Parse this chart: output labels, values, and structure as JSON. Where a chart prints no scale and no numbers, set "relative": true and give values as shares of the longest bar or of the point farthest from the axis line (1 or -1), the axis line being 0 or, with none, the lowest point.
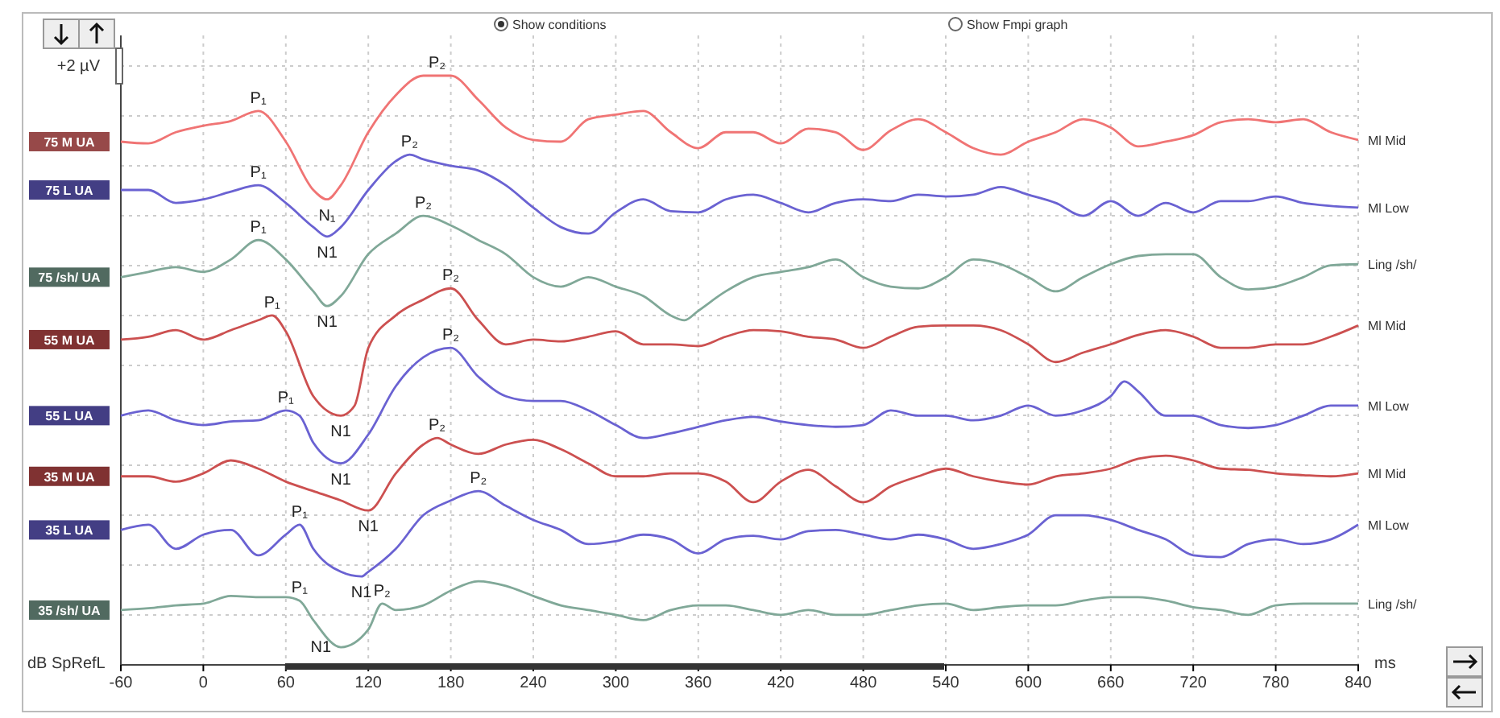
{
  "chart_data": {
    "type": "line",
    "relative": true,
    "xlabel": "ms",
    "ylabel": "dB SpRefL",
    "xlim": [
      -60,
      840
    ],
    "xticks": [
      -60,
      0,
      60,
      120,
      180,
      240,
      300,
      360,
      420,
      480,
      540,
      600,
      660,
      720,
      780,
      840
    ],
    "grid": true,
    "series": [
      {
        "name": "75 M UA",
        "color": "#f07474",
        "x": [
          -60,
          -40,
          -20,
          0,
          20,
          40,
          60,
          80,
          90,
          100,
          120,
          140,
          160,
          180,
          200,
          220,
          240,
          260,
          280,
          300,
          320,
          340,
          360,
          380,
          400,
          420,
          440,
          460,
          480,
          500,
          520,
          540,
          560,
          580,
          600,
          620,
          640,
          660,
          680,
          700,
          720,
          740,
          760,
          780,
          800,
          820,
          840
        ],
        "values": [
          0.888,
          0.885,
          0.904,
          0.915,
          0.923,
          0.94,
          0.888,
          0.806,
          0.79,
          0.814,
          0.904,
          0.967,
          1,
          1,
          0.959,
          0.912,
          0.891,
          0.888,
          0.926,
          0.934,
          0.94,
          0.904,
          0.877,
          0.904,
          0.904,
          0.885,
          0.91,
          0.904,
          0.874,
          0.907,
          0.926,
          0.904,
          0.877,
          0.866,
          0.888,
          0.904,
          0.926,
          0.912,
          0.88,
          0.888,
          0.899,
          0.921,
          0.926,
          0.921,
          0.926,
          0.904,
          0.891
        ]
      },
      {
        "name": "75 L UA",
        "color": "#6a62d2",
        "x": [
          -60,
          -40,
          -20,
          0,
          20,
          40,
          60,
          80,
          90,
          100,
          120,
          140,
          150,
          160,
          180,
          200,
          220,
          240,
          260,
          280,
          300,
          320,
          340,
          360,
          380,
          400,
          420,
          440,
          460,
          480,
          500,
          520,
          540,
          560,
          580,
          600,
          620,
          640,
          660,
          680,
          700,
          720,
          740,
          760,
          780,
          800,
          820,
          840
        ],
        "values": [
          0.806,
          0.806,
          0.784,
          0.79,
          0.803,
          0.814,
          0.784,
          0.743,
          0.727,
          0.743,
          0.806,
          0.855,
          0.866,
          0.858,
          0.847,
          0.839,
          0.814,
          0.776,
          0.743,
          0.732,
          0.768,
          0.79,
          0.77,
          0.768,
          0.79,
          0.798,
          0.784,
          0.768,
          0.784,
          0.79,
          0.787,
          0.798,
          0.795,
          0.798,
          0.811,
          0.798,
          0.784,
          0.762,
          0.787,
          0.762,
          0.784,
          0.768,
          0.787,
          0.787,
          0.795,
          0.784,
          0.779,
          0.776
        ]
      },
      {
        "name": "75 /sh/ UA",
        "color": "#80a898",
        "x": [
          -60,
          -40,
          -20,
          0,
          20,
          40,
          60,
          80,
          90,
          100,
          120,
          140,
          160,
          180,
          200,
          220,
          240,
          260,
          280,
          300,
          320,
          340,
          350,
          360,
          380,
          400,
          420,
          440,
          460,
          480,
          500,
          520,
          540,
          560,
          580,
          600,
          620,
          640,
          660,
          680,
          700,
          720,
          740,
          760,
          780,
          800,
          820,
          840
        ],
        "values": [
          0.658,
          0.667,
          0.675,
          0.667,
          0.688,
          0.721,
          0.688,
          0.634,
          0.609,
          0.626,
          0.697,
          0.732,
          0.762,
          0.746,
          0.721,
          0.697,
          0.658,
          0.642,
          0.658,
          0.642,
          0.626,
          0.593,
          0.585,
          0.601,
          0.634,
          0.658,
          0.667,
          0.675,
          0.688,
          0.658,
          0.642,
          0.639,
          0.658,
          0.688,
          0.68,
          0.658,
          0.634,
          0.658,
          0.68,
          0.694,
          0.697,
          0.697,
          0.658,
          0.637,
          0.642,
          0.658,
          0.678,
          0.68
        ]
      },
      {
        "name": "55 M UA",
        "color": "#cc5050",
        "x": [
          -60,
          -40,
          -20,
          0,
          20,
          40,
          50,
          60,
          80,
          100,
          110,
          120,
          140,
          160,
          180,
          200,
          220,
          240,
          260,
          280,
          300,
          320,
          340,
          360,
          380,
          400,
          420,
          440,
          460,
          480,
          500,
          520,
          540,
          560,
          580,
          600,
          620,
          640,
          660,
          680,
          700,
          720,
          740,
          760,
          780,
          800,
          820,
          840
        ],
        "values": [
          0.552,
          0.557,
          0.568,
          0.552,
          0.568,
          0.585,
          0.593,
          0.566,
          0.456,
          0.423,
          0.44,
          0.538,
          0.593,
          0.62,
          0.639,
          0.585,
          0.544,
          0.552,
          0.549,
          0.557,
          0.566,
          0.544,
          0.544,
          0.541,
          0.557,
          0.568,
          0.566,
          0.557,
          0.552,
          0.538,
          0.557,
          0.574,
          0.576,
          0.576,
          0.568,
          0.544,
          0.514,
          0.53,
          0.544,
          0.56,
          0.568,
          0.557,
          0.538,
          0.538,
          0.544,
          0.544,
          0.557,
          0.576
        ]
      },
      {
        "name": "55 L UA",
        "color": "#6a62d2",
        "x": [
          -60,
          -40,
          -20,
          0,
          20,
          40,
          60,
          70,
          80,
          100,
          120,
          140,
          160,
          180,
          200,
          220,
          240,
          260,
          280,
          300,
          320,
          340,
          360,
          380,
          400,
          420,
          440,
          460,
          480,
          500,
          520,
          540,
          560,
          580,
          600,
          620,
          640,
          660,
          670,
          680,
          700,
          720,
          740,
          760,
          780,
          800,
          820,
          840
        ],
        "values": [
          0.423,
          0.432,
          0.415,
          0.407,
          0.413,
          0.415,
          0.432,
          0.423,
          0.377,
          0.342,
          0.391,
          0.473,
          0.522,
          0.538,
          0.489,
          0.456,
          0.448,
          0.448,
          0.432,
          0.407,
          0.385,
          0.393,
          0.404,
          0.415,
          0.421,
          0.413,
          0.407,
          0.404,
          0.407,
          0.432,
          0.423,
          0.423,
          0.415,
          0.423,
          0.44,
          0.423,
          0.432,
          0.456,
          0.481,
          0.464,
          0.423,
          0.423,
          0.407,
          0.402,
          0.407,
          0.423,
          0.44,
          0.44
        ]
      },
      {
        "name": "35 M UA",
        "color": "#cc5050",
        "x": [
          -60,
          -40,
          -20,
          0,
          20,
          40,
          60,
          80,
          100,
          120,
          140,
          160,
          170,
          180,
          200,
          220,
          240,
          260,
          280,
          300,
          320,
          340,
          360,
          380,
          400,
          420,
          440,
          460,
          480,
          500,
          520,
          540,
          560,
          580,
          600,
          620,
          640,
          660,
          680,
          700,
          720,
          740,
          760,
          780,
          800,
          820,
          840
        ],
        "values": [
          0.32,
          0.32,
          0.311,
          0.325,
          0.347,
          0.333,
          0.311,
          0.295,
          0.279,
          0.262,
          0.325,
          0.374,
          0.385,
          0.374,
          0.358,
          0.374,
          0.382,
          0.366,
          0.342,
          0.32,
          0.32,
          0.325,
          0.325,
          0.311,
          0.276,
          0.311,
          0.331,
          0.303,
          0.276,
          0.303,
          0.32,
          0.333,
          0.32,
          0.311,
          0.306,
          0.32,
          0.325,
          0.333,
          0.35,
          0.355,
          0.347,
          0.333,
          0.331,
          0.325,
          0.322,
          0.32,
          0.325
        ]
      },
      {
        "name": "35 L UA",
        "color": "#6a62d2",
        "x": [
          -60,
          -40,
          -20,
          0,
          20,
          40,
          60,
          70,
          80,
          100,
          115,
          120,
          140,
          160,
          180,
          200,
          220,
          240,
          260,
          280,
          300,
          320,
          340,
          360,
          380,
          400,
          420,
          440,
          460,
          480,
          500,
          520,
          540,
          560,
          580,
          600,
          620,
          640,
          660,
          680,
          700,
          720,
          740,
          760,
          780,
          800,
          820,
          840
        ],
        "values": [
          0.229,
          0.238,
          0.197,
          0.221,
          0.229,
          0.186,
          0.221,
          0.238,
          0.197,
          0.158,
          0.15,
          0.158,
          0.197,
          0.254,
          0.279,
          0.295,
          0.27,
          0.246,
          0.229,
          0.205,
          0.21,
          0.221,
          0.213,
          0.189,
          0.213,
          0.219,
          0.213,
          0.227,
          0.229,
          0.221,
          0.213,
          0.221,
          0.213,
          0.197,
          0.205,
          0.221,
          0.254,
          0.254,
          0.246,
          0.229,
          0.213,
          0.186,
          0.183,
          0.205,
          0.213,
          0.205,
          0.213,
          0.238
        ]
      },
      {
        "name": "35 /sh/ UA",
        "color": "#80a898",
        "x": [
          -60,
          -40,
          -20,
          0,
          20,
          40,
          60,
          70,
          80,
          100,
          120,
          130,
          140,
          160,
          180,
          200,
          220,
          240,
          260,
          280,
          300,
          320,
          340,
          360,
          380,
          400,
          420,
          440,
          460,
          480,
          500,
          520,
          540,
          560,
          580,
          600,
          620,
          640,
          660,
          680,
          700,
          720,
          740,
          760,
          780,
          800,
          820,
          840
        ],
        "values": [
          0.093,
          0.096,
          0.101,
          0.104,
          0.117,
          0.115,
          0.115,
          0.109,
          0.076,
          0.03,
          0.06,
          0.104,
          0.093,
          0.101,
          0.126,
          0.142,
          0.134,
          0.117,
          0.101,
          0.093,
          0.085,
          0.076,
          0.093,
          0.101,
          0.101,
          0.093,
          0.085,
          0.093,
          0.085,
          0.085,
          0.093,
          0.101,
          0.104,
          0.093,
          0.098,
          0.101,
          0.101,
          0.109,
          0.115,
          0.115,
          0.109,
          0.098,
          0.093,
          0.085,
          0.101,
          0.104,
          0.104,
          0.104
        ]
      }
    ],
    "annotations": [
      "+2 µV",
      "Show conditions",
      "Show Fmpi graph",
      {
        "text": "Ml Mid",
        "x": 840,
        "y": 0.891
      },
      {
        "text": "Ml Low",
        "x": 840,
        "y": 0.776
      },
      {
        "text": "Ling /sh/",
        "x": 840,
        "y": 0.68
      },
      {
        "text": "Ml Mid",
        "x": 840,
        "y": 0.576
      },
      {
        "text": "Ml Low",
        "x": 840,
        "y": 0.44
      },
      {
        "text": "Ml Mid",
        "x": 840,
        "y": 0.325
      },
      {
        "text": "Ml Low",
        "x": 840,
        "y": 0.238
      },
      {
        "text": "Ling /sh/",
        "x": 840,
        "y": 0.104
      },
      {
        "text": "P₁",
        "x": 40,
        "y": 0.94
      },
      {
        "text": "N₁",
        "x": 90,
        "y": 0.79
      },
      {
        "text": "P₂",
        "x": 170,
        "y": 1
      },
      {
        "text": "P₁",
        "x": 40,
        "y": 0.814
      },
      {
        "text": "N1",
        "x": 90,
        "y": 0.727
      },
      {
        "text": "P₂",
        "x": 150,
        "y": 0.866
      },
      {
        "text": "P₁",
        "x": 40,
        "y": 0.721
      },
      {
        "text": "N1",
        "x": 90,
        "y": 0.609
      },
      {
        "text": "P₂",
        "x": 160,
        "y": 0.762
      },
      {
        "text": "P₁",
        "x": 50,
        "y": 0.593
      },
      {
        "text": "N1",
        "x": 100,
        "y": 0.423
      },
      {
        "text": "P₂",
        "x": 180,
        "y": 0.639
      },
      {
        "text": "P₁",
        "x": 60,
        "y": 0.432
      },
      {
        "text": "N1",
        "x": 100,
        "y": 0.342
      },
      {
        "text": "P₂",
        "x": 180,
        "y": 0.538
      },
      {
        "text": "N1",
        "x": 120,
        "y": 0.262
      },
      {
        "text": "P₂",
        "x": 170,
        "y": 0.385
      },
      {
        "text": "P₁",
        "x": 70,
        "y": 0.238
      },
      {
        "text": "N1",
        "x": 115,
        "y": 0.15
      },
      {
        "text": "P₂",
        "x": 200,
        "y": 0.295
      },
      {
        "text": "P₁",
        "x": 70,
        "y": 0.109
      },
      {
        "text": "N1",
        "x": 100,
        "y": 0.03
      },
      {
        "text": "P₂",
        "x": 130,
        "y": 0.104
      }
    ]
  }
}
